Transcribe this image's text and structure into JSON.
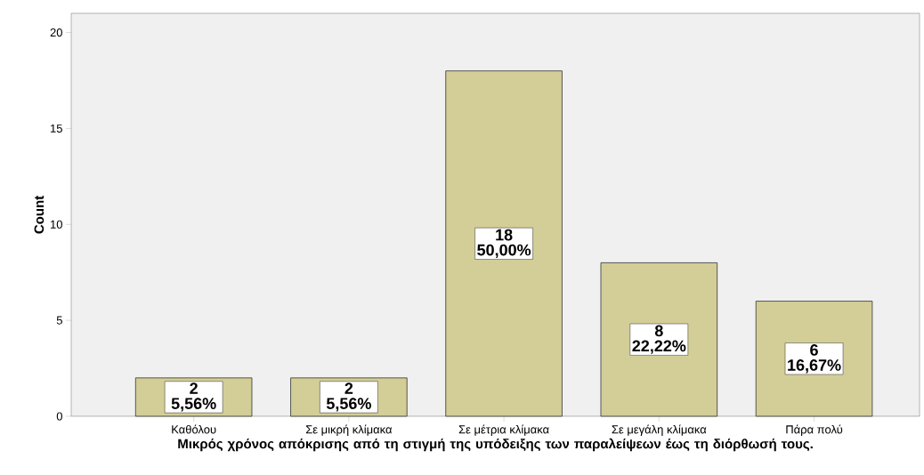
{
  "chart_data": {
    "type": "bar",
    "xlabel": "Μικρός χρόνος απόκρισης από τη στιγμή της υπόδειξης των παραλείψεων έως τη διόρθωσή τους.",
    "ylabel": "Count",
    "categories": [
      "Καθόλου",
      "Σε μικρή κλίμακα",
      "Σε μέτρια κλίμακα",
      "Σε μεγάλη κλίμακα",
      "Πάρα πολύ"
    ],
    "values": [
      2,
      2,
      18,
      8,
      6
    ],
    "value_labels": [
      "2 5,56%",
      "2 5,56%",
      "18 50,00%",
      "8 22,22%",
      "6 16,67%"
    ],
    "color": "#d3ce97",
    "ylim": [
      0,
      21
    ],
    "yticks": [
      0,
      5,
      10,
      15,
      20
    ],
    "grid": false
  }
}
